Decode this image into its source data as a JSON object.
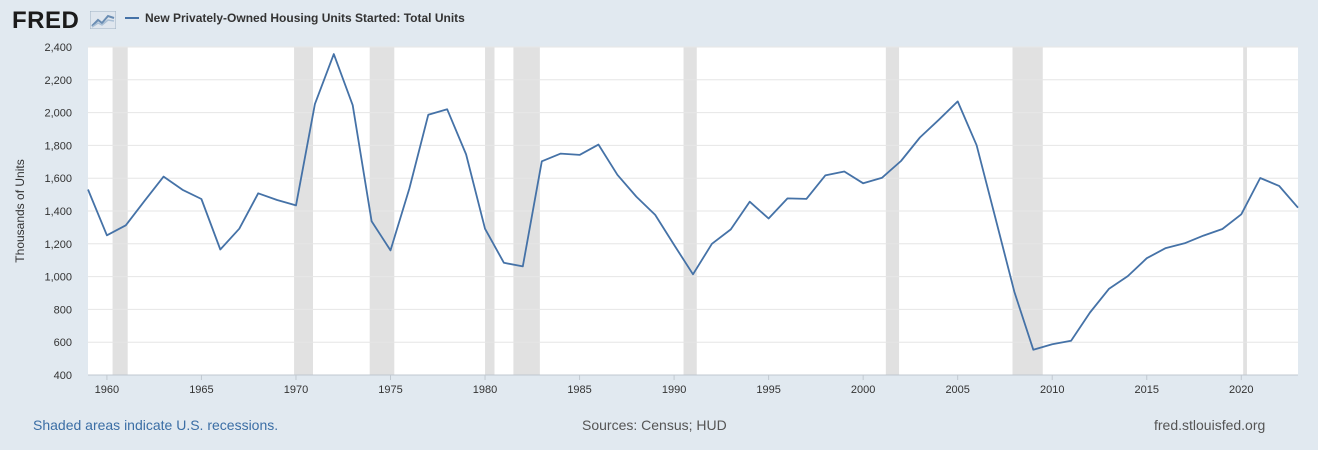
{
  "header": {
    "logo_text": "FRED",
    "logo_icon": "line-chart-icon",
    "series_title": "New Privately-Owned Housing Units Started: Total Units"
  },
  "colors": {
    "background": "#e1e9f0",
    "plot_background": "#ffffff",
    "line": "#4572a7",
    "recession": "#e1e1e1",
    "grid": "#e6e6e6"
  },
  "footer": {
    "recession_note": "Shaded areas indicate U.S. recessions.",
    "sources": "Sources: Census; HUD",
    "site": "fred.stlouisfed.org"
  },
  "chart_data": {
    "type": "line",
    "title": "New Privately-Owned Housing Units Started: Total Units",
    "ylabel": "Thousands of Units",
    "xlabel": "",
    "xlim": [
      1959,
      2023
    ],
    "ylim": [
      400,
      2400
    ],
    "yticks": [
      400,
      600,
      800,
      1000,
      1200,
      1400,
      1600,
      1800,
      2000,
      2200,
      2400
    ],
    "ytick_labels": [
      "400",
      "600",
      "800",
      "1,000",
      "1,200",
      "1,400",
      "1,600",
      "1,800",
      "2,000",
      "2,200",
      "2,400"
    ],
    "xticks": [
      1960,
      1965,
      1970,
      1975,
      1980,
      1985,
      1990,
      1995,
      2000,
      2005,
      2010,
      2015,
      2020
    ],
    "grid": true,
    "legend": "top-left",
    "recessions": [
      [
        1960.3,
        1961.1
      ],
      [
        1969.9,
        1970.9
      ],
      [
        1973.9,
        1975.2
      ],
      [
        1980.0,
        1980.5
      ],
      [
        1981.5,
        1982.9
      ],
      [
        1990.5,
        1991.2
      ],
      [
        2001.2,
        2001.9
      ],
      [
        2007.9,
        2009.5
      ],
      [
        2020.1,
        2020.3
      ]
    ],
    "series": [
      {
        "name": "New Privately-Owned Housing Units Started: Total Units",
        "x": [
          1959,
          1960,
          1961,
          1962,
          1963,
          1964,
          1965,
          1966,
          1967,
          1968,
          1969,
          1970,
          1971,
          1972,
          1973,
          1974,
          1975,
          1976,
          1977,
          1978,
          1979,
          1980,
          1981,
          1982,
          1983,
          1984,
          1985,
          1986,
          1987,
          1988,
          1989,
          1990,
          1991,
          1992,
          1993,
          1994,
          1995,
          1996,
          1997,
          1998,
          1999,
          2000,
          2001,
          2002,
          2003,
          2004,
          2005,
          2006,
          2007,
          2008,
          2009,
          2010,
          2011,
          2012,
          2013,
          2014,
          2015,
          2016,
          2017,
          2018,
          2019,
          2020,
          2021,
          2022,
          2023
        ],
        "values": [
          1531,
          1252,
          1313,
          1463,
          1610,
          1529,
          1473,
          1165,
          1292,
          1508,
          1467,
          1434,
          2052,
          2357,
          2045,
          1338,
          1160,
          1538,
          1987,
          2020,
          1745,
          1292,
          1084,
          1062,
          1703,
          1750,
          1742,
          1805,
          1621,
          1488,
          1376,
          1193,
          1014,
          1200,
          1288,
          1457,
          1354,
          1477,
          1474,
          1617,
          1641,
          1569,
          1603,
          1705,
          1848,
          1956,
          2068,
          1801,
          1355,
          906,
          554,
          587,
          609,
          781,
          925,
          1003,
          1112,
          1174,
          1203,
          1250,
          1290,
          1380,
          1601,
          1553,
          1420
        ]
      }
    ]
  }
}
